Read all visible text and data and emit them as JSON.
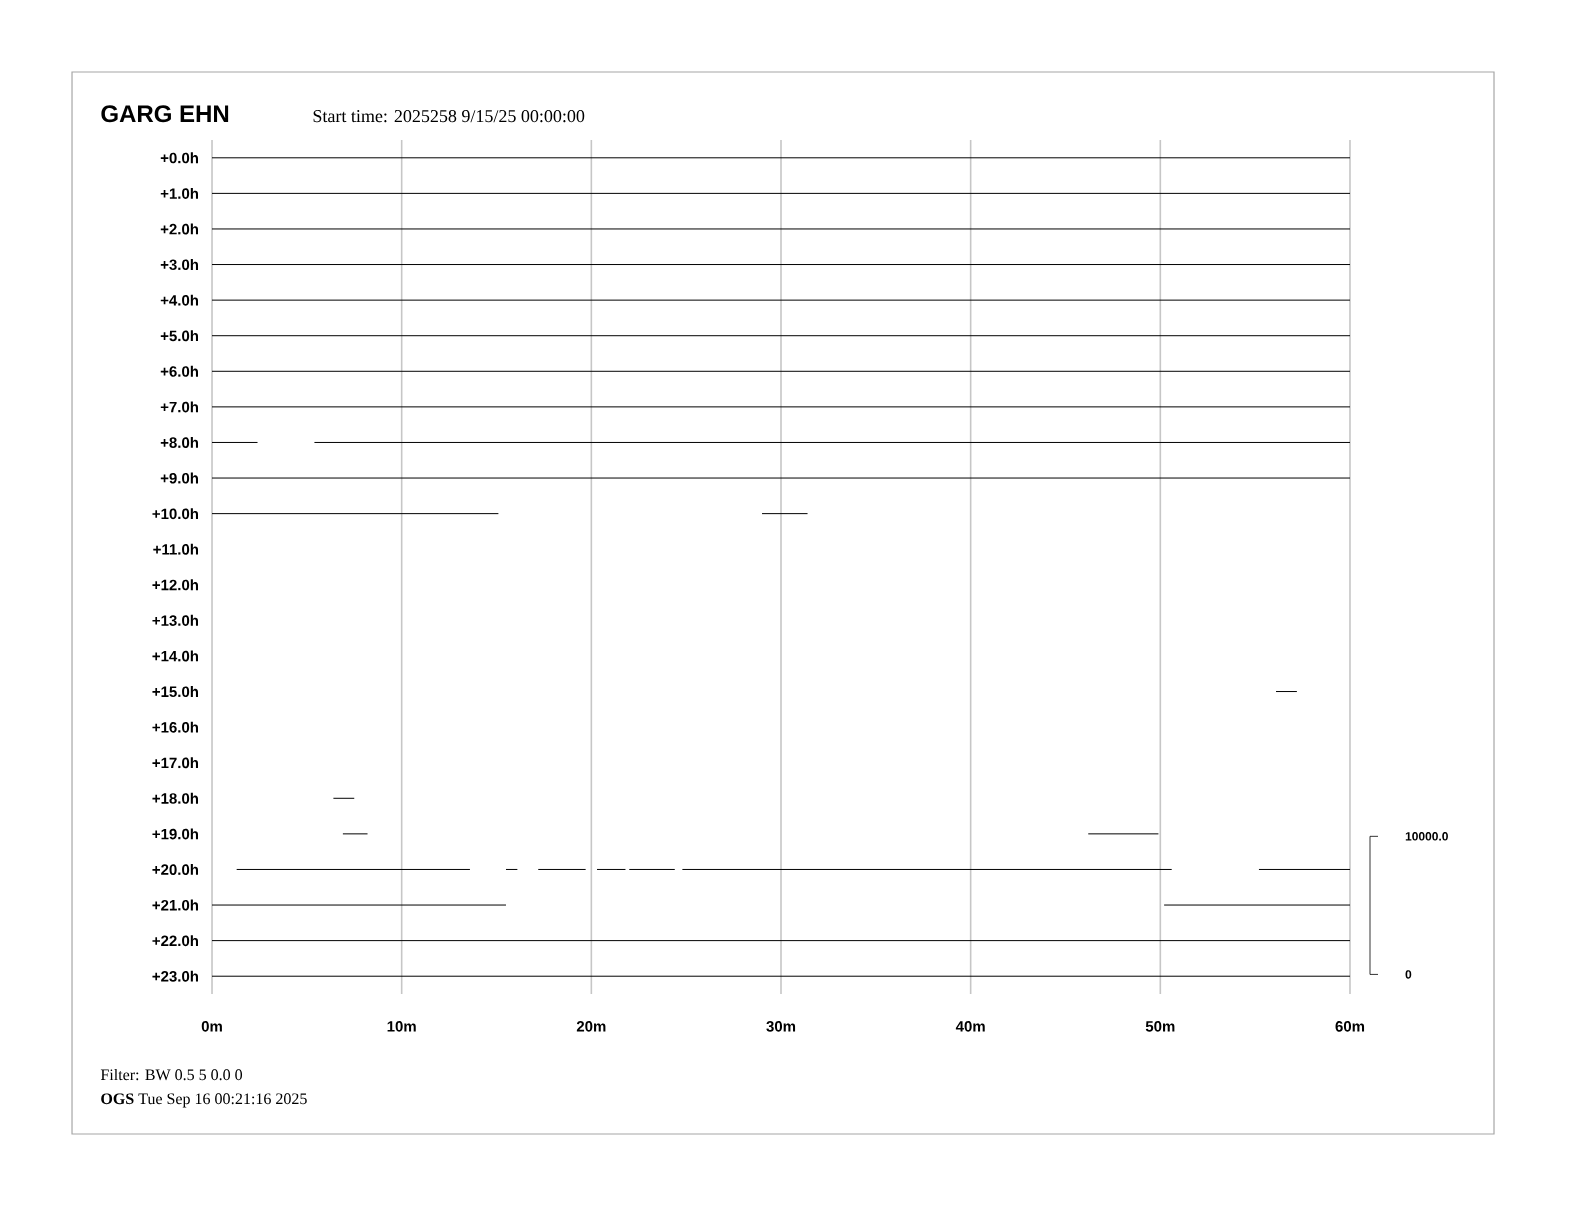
{
  "chart_data": {
    "type": "line",
    "title": "GARG EHN",
    "subtitle": "Start time: 2025258  9/15/25 00:00:00",
    "annotations": [
      "Filter: BW 0.5 5 0.0 0",
      "**OGS**  Tue Sep 16 00:21:16 2025"
    ],
    "xlim": [
      0,
      60
    ],
    "xticks": [
      {
        "value": 0,
        "label": "0m"
      },
      {
        "value": 10,
        "label": "10m"
      },
      {
        "value": 20,
        "label": "20m"
      },
      {
        "value": 30,
        "label": "30m"
      },
      {
        "value": 40,
        "label": "40m"
      },
      {
        "value": 50,
        "label": "50m"
      },
      {
        "value": 60,
        "label": "60m"
      }
    ],
    "ylim": [
      23.5,
      -0.5
    ],
    "yticks": [
      {
        "value": 0,
        "label": "+0.0h"
      },
      {
        "value": 1,
        "label": "+1.0h"
      },
      {
        "value": 2,
        "label": "+2.0h"
      },
      {
        "value": 3,
        "label": "+3.0h"
      },
      {
        "value": 4,
        "label": "+4.0h"
      },
      {
        "value": 5,
        "label": "+5.0h"
      },
      {
        "value": 6,
        "label": "+6.0h"
      },
      {
        "value": 7,
        "label": "+7.0h"
      },
      {
        "value": 8,
        "label": "+8.0h"
      },
      {
        "value": 9,
        "label": "+9.0h"
      },
      {
        "value": 10,
        "label": "+10.0h"
      },
      {
        "value": 11,
        "label": "+11.0h"
      },
      {
        "value": 12,
        "label": "+12.0h"
      },
      {
        "value": 13,
        "label": "+13.0h"
      },
      {
        "value": 14,
        "label": "+14.0h"
      },
      {
        "value": 15,
        "label": "+15.0h"
      },
      {
        "value": 16,
        "label": "+16.0h"
      },
      {
        "value": 17,
        "label": "+17.0h"
      },
      {
        "value": 18,
        "label": "+18.0h"
      },
      {
        "value": 19,
        "label": "+19.0h"
      },
      {
        "value": 20,
        "label": "+20.0h"
      },
      {
        "value": 21,
        "label": "+21.0h"
      },
      {
        "value": 22,
        "label": "+22.0h"
      },
      {
        "value": 23,
        "label": "+23.0h"
      }
    ],
    "y2lim": [
      -1417,
      60431
    ],
    "y2ticks": [
      0,
      {
        "value": 10000,
        "label": "10000.0"
      }
    ],
    "grid": "x",
    "marker": "none",
    "line_style": "solid",
    "series": [
      {
        "color": "#000000",
        "x": [
          0,
          60
        ],
        "values": [
          0,
          0
        ]
      },
      {
        "color": "#000000",
        "x": [
          0,
          60
        ],
        "values": [
          1,
          1
        ]
      },
      {
        "color": "#000000",
        "x": [
          0,
          60
        ],
        "values": [
          2,
          2
        ]
      },
      {
        "color": "#000000",
        "x": [
          0,
          60
        ],
        "values": [
          3,
          3
        ]
      },
      {
        "color": "#000000",
        "x": [
          0,
          60
        ],
        "values": [
          4,
          4
        ]
      },
      {
        "color": "#000000",
        "x": [
          0,
          60
        ],
        "values": [
          5,
          5
        ]
      },
      {
        "color": "#000000",
        "x": [
          0,
          60
        ],
        "values": [
          6,
          6
        ]
      },
      {
        "color": "#000000",
        "x": [
          0,
          60
        ],
        "values": [
          7,
          7
        ]
      },
      {
        "color": "#000000",
        "x": [
          0,
          2.4,
          3.9,
          5.4,
          60
        ],
        "values": [
          8,
          8,
          null,
          8,
          8
        ]
      },
      {
        "color": "#000000",
        "x": [
          0,
          60
        ],
        "values": [
          9,
          9
        ]
      },
      {
        "color": "#000000",
        "x": [
          0,
          15.1,
          22,
          29.0,
          31.4
        ],
        "values": [
          10,
          10,
          null,
          10,
          10
        ]
      },
      {
        "color": "#000000",
        "x": [
          56.1,
          57.2
        ],
        "values": [
          15,
          15
        ]
      },
      {
        "color": "#000000",
        "x": [
          6.4,
          7.5
        ],
        "values": [
          18,
          18
        ]
      },
      {
        "color": "#000000",
        "x": [
          6.9,
          8.2,
          27,
          46.2,
          49.9
        ],
        "values": [
          19,
          19,
          null,
          19,
          19
        ]
      },
      {
        "color": "#000000",
        "x": [
          1.3,
          13.6,
          14.7,
          15.5,
          16.1,
          16.6,
          17.2,
          19.7,
          20.0,
          20.3,
          21.8,
          21.9,
          22.0,
          24.4,
          24.6,
          24.8,
          50.6,
          52.9,
          55.2,
          60
        ],
        "values": [
          20,
          20,
          null,
          20,
          20,
          null,
          20,
          20,
          null,
          20,
          20,
          null,
          20,
          20,
          null,
          20,
          20,
          null,
          20,
          20
        ]
      },
      {
        "color": "#000000",
        "x": [
          0,
          15.5,
          32.8,
          50.2,
          60
        ],
        "values": [
          21,
          21,
          null,
          21,
          21
        ]
      },
      {
        "color": "#000000",
        "x": [
          0,
          60
        ],
        "values": [
          22,
          22
        ]
      },
      {
        "color": "#000000",
        "x": [
          0,
          60
        ],
        "values": [
          23,
          23
        ]
      }
    ]
  }
}
